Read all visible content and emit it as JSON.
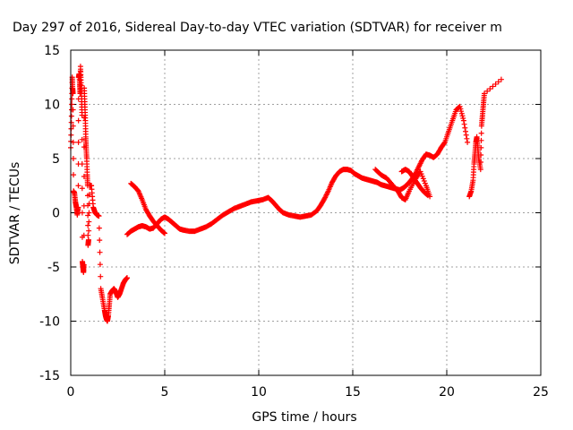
{
  "chart_data": {
    "type": "scatter",
    "title": "Day 297 of 2016, Sidereal Day-to-day VTEC variation (SDTVAR) for receiver m",
    "xlabel": "GPS time / hours",
    "ylabel": "SDTVAR / TECUs",
    "xlim": [
      0,
      25
    ],
    "ylim": [
      -15,
      15
    ],
    "xticks": [
      0,
      5,
      10,
      15,
      20,
      25
    ],
    "yticks": [
      -15,
      -10,
      -5,
      0,
      5,
      10,
      15
    ],
    "grid": true,
    "marker": "+",
    "color": "#ff0000",
    "series": [
      {
        "x": [
          0.0,
          0.05,
          0.08,
          0.1,
          0.12,
          0.15,
          0.2,
          0.25,
          0.3,
          0.35,
          0.4,
          0.42,
          0.45,
          0.48,
          0.5,
          0.52,
          0.55,
          0.58,
          0.6,
          0.62,
          0.65,
          0.68,
          0.7,
          0.72,
          0.75,
          0.78,
          0.8,
          0.82,
          0.85,
          0.88,
          0.9,
          0.92,
          0.95,
          1.0,
          1.05,
          1.1,
          1.2,
          1.3,
          1.4,
          1.5,
          1.6,
          1.7,
          1.8,
          1.85,
          1.9,
          1.95,
          2.0,
          2.05,
          2.1,
          2.2,
          2.3,
          2.4,
          2.5,
          2.6,
          2.7,
          2.8,
          2.9,
          3.0
        ],
        "y": [
          6.0,
          9.5,
          12.5,
          11.5,
          11.0,
          2.0,
          1.8,
          1.0,
          0.5,
          -0.2,
          0.5,
          12.5,
          12.8,
          11.8,
          11.0,
          13.5,
          12.0,
          10.5,
          9.0,
          -4.5,
          -5.0,
          -5.5,
          -4.8,
          11.5,
          10.0,
          8.5,
          7.0,
          6.0,
          5.0,
          3.5,
          2.5,
          -3.0,
          -2.5,
          2.5,
          2.5,
          2.5,
          0.5,
          0.0,
          -0.2,
          -0.3,
          -7.0,
          -8.0,
          -9.0,
          -9.5,
          -9.8,
          -10.0,
          -9.5,
          -8.5,
          -7.5,
          -7.2,
          -7.0,
          -7.3,
          -7.8,
          -7.5,
          -7.0,
          -6.5,
          -6.2,
          -6.0
        ]
      },
      {
        "x": [
          3.0,
          3.2,
          3.4,
          3.6,
          3.8,
          4.0,
          4.2,
          4.4,
          4.6,
          4.8,
          5.0,
          5.2,
          5.4,
          5.6,
          5.8,
          6.0,
          6.3,
          6.6,
          6.9,
          7.2,
          7.5,
          7.8,
          8.1,
          8.4,
          8.7,
          9.0,
          9.3,
          9.6,
          9.9,
          10.2,
          10.5,
          10.7,
          10.9,
          11.1,
          11.3,
          11.6,
          11.9,
          12.2,
          12.5,
          12.8,
          13.1,
          13.3,
          13.5,
          13.7,
          13.9,
          14.1,
          14.3,
          14.5,
          14.7,
          14.9,
          15.1,
          15.3,
          15.5,
          15.7,
          15.9,
          16.1,
          16.3,
          16.5,
          16.7,
          16.9,
          17.1,
          17.3,
          17.5,
          17.7,
          17.9,
          18.1,
          18.3,
          18.5,
          18.7,
          18.9,
          19.1,
          19.3,
          19.5,
          19.7,
          19.9,
          20.1,
          20.3,
          20.5,
          20.7,
          20.9,
          21.1
        ],
        "y": [
          -2.0,
          -1.7,
          -1.5,
          -1.3,
          -1.2,
          -1.3,
          -1.5,
          -1.4,
          -1.0,
          -0.6,
          -0.4,
          -0.6,
          -0.9,
          -1.2,
          -1.5,
          -1.6,
          -1.7,
          -1.7,
          -1.5,
          -1.3,
          -1.0,
          -0.6,
          -0.2,
          0.1,
          0.4,
          0.6,
          0.8,
          1.0,
          1.1,
          1.2,
          1.4,
          1.1,
          0.7,
          0.3,
          0.0,
          -0.2,
          -0.3,
          -0.4,
          -0.3,
          -0.2,
          0.2,
          0.7,
          1.3,
          2.0,
          2.8,
          3.4,
          3.8,
          4.0,
          4.0,
          3.9,
          3.6,
          3.4,
          3.2,
          3.1,
          3.0,
          2.9,
          2.8,
          2.6,
          2.5,
          2.4,
          2.3,
          2.2,
          2.1,
          2.3,
          2.6,
          3.0,
          3.5,
          4.2,
          4.9,
          5.4,
          5.3,
          5.1,
          5.4,
          6.0,
          6.5,
          7.5,
          8.5,
          9.5,
          9.8,
          8.5,
          6.5
        ]
      },
      {
        "x": [
          3.2,
          3.4,
          3.6,
          3.8,
          4.0,
          4.2,
          4.4,
          4.6,
          4.8,
          5.0
        ],
        "y": [
          2.7,
          2.4,
          2.0,
          1.2,
          0.3,
          -0.3,
          -0.8,
          -1.2,
          -1.6,
          -1.9
        ]
      },
      {
        "x": [
          16.2,
          16.5,
          16.8,
          17.1,
          17.4,
          17.6,
          17.8,
          18.0,
          18.3,
          18.6,
          18.9,
          19.1
        ],
        "y": [
          4.0,
          3.5,
          3.2,
          2.6,
          2.0,
          1.4,
          1.2,
          2.0,
          3.0,
          3.8,
          2.5,
          1.5
        ]
      },
      {
        "x": [
          17.6,
          17.8,
          18.0,
          18.2,
          18.4,
          18.6,
          18.8,
          19.0
        ],
        "y": [
          3.8,
          4.0,
          3.8,
          3.3,
          2.8,
          2.3,
          1.9,
          1.6
        ]
      },
      {
        "x": [
          21.2,
          21.3,
          21.4,
          21.45,
          21.5,
          21.55,
          21.6,
          21.65,
          21.7,
          21.8,
          21.85,
          21.9,
          21.95,
          22.0,
          22.9
        ],
        "y": [
          1.5,
          2.0,
          3.0,
          4.5,
          5.5,
          6.5,
          7.0,
          6.0,
          5.0,
          4.0,
          8.0,
          9.0,
          10.0,
          11.0,
          12.3
        ]
      }
    ]
  }
}
